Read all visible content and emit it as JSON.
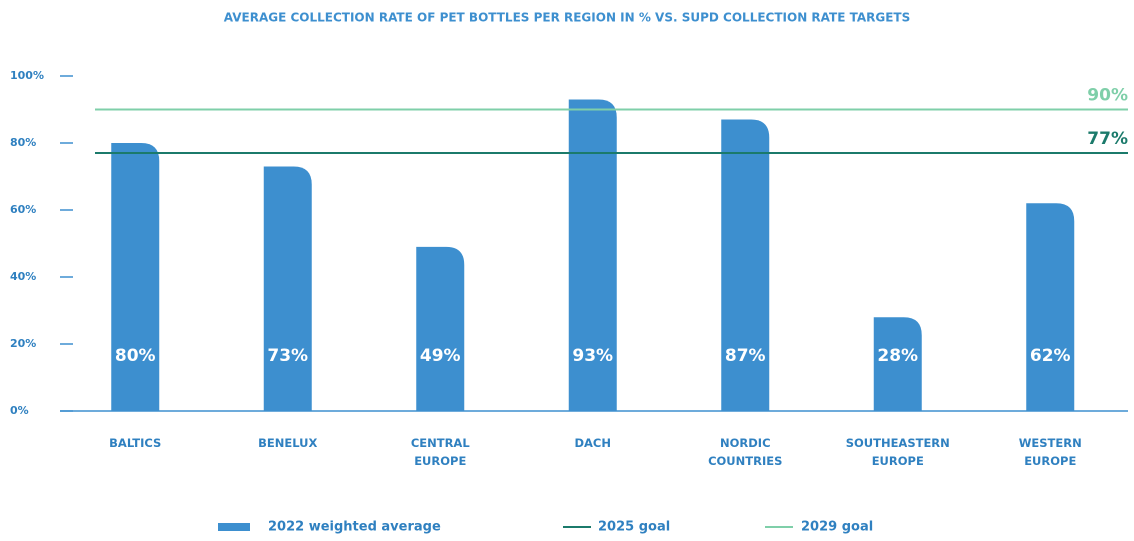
{
  "chart_data": {
    "type": "bar",
    "title": "AVERAGE COLLECTION RATE OF PET BOTTLES PER REGION IN % VS. SUPD COLLECTION RATE TARGETS",
    "categories": [
      "BALTICS",
      "BENELUX",
      "CENTRAL EUROPE",
      "DACH",
      "NORDIC COUNTRIES",
      "SOUTHEASTERN EUROPE",
      "WESTERN EUROPE"
    ],
    "series": [
      {
        "name": "2022 weighted average",
        "color": "#3d8fcf",
        "values": [
          80,
          73,
          49,
          93,
          87,
          28,
          62
        ],
        "value_labels": [
          "80%",
          "73%",
          "49%",
          "93%",
          "87%",
          "28%",
          "62%"
        ]
      }
    ],
    "reference_lines": [
      {
        "name": "2025 goal",
        "value": 77,
        "label": "77%",
        "color": "#1b7a6b"
      },
      {
        "name": "2029 goal",
        "value": 90,
        "label": "90%",
        "color": "#7fcfa9"
      }
    ],
    "ylim": [
      0,
      100
    ],
    "yticks": [
      {
        "value": 0,
        "label": "0%"
      },
      {
        "value": 20,
        "label": "20%"
      },
      {
        "value": 40,
        "label": "40%"
      },
      {
        "value": 60,
        "label": "60%"
      },
      {
        "value": 80,
        "label": "80%"
      },
      {
        "value": 100,
        "label": "100%"
      }
    ]
  }
}
